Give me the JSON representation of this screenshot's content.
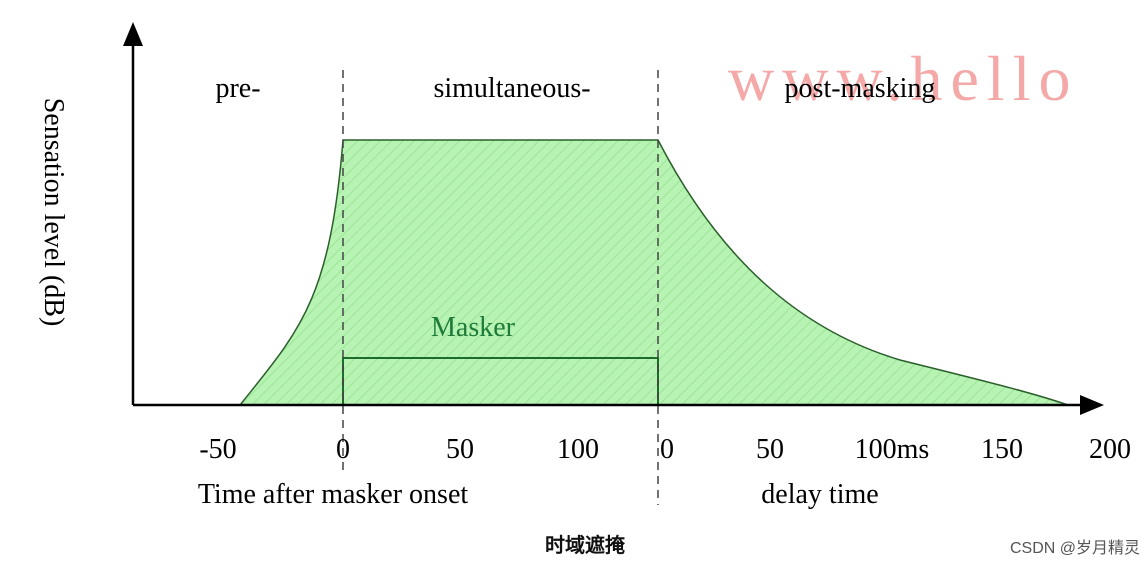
{
  "diagram": {
    "y_axis_label": "Sensation level (dB)",
    "regions": [
      "pre-",
      "simultaneous-",
      "post-masking"
    ],
    "masker_label": "Masker",
    "x_ticks_onset": [
      "-50",
      "0",
      "50",
      "100"
    ],
    "x_ticks_delay": [
      "0",
      "50",
      "100ms",
      "150",
      "200"
    ],
    "x_caption_left": "Time after masker onset",
    "x_caption_right": "delay time",
    "caption_cn": "时域遮掩",
    "watermark": "www.hello",
    "credit": "CSDN @岁月精灵"
  },
  "colors": {
    "fill": "#b7f3b2",
    "fill_hatch": "#9fe39a",
    "masker_text": "#1e7b3a",
    "watermark": "#f08b8b",
    "axis": "#000000"
  }
}
